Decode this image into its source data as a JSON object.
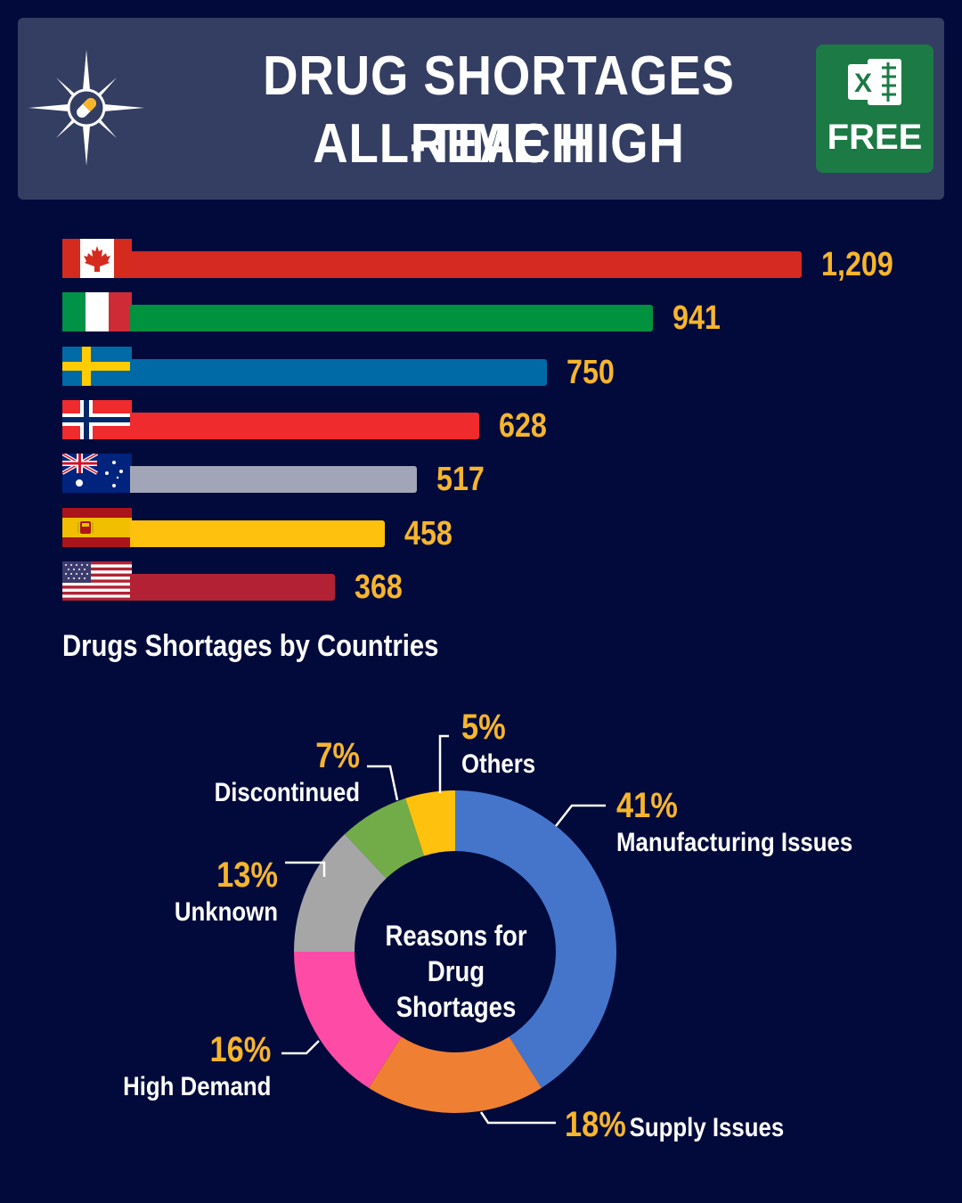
{
  "header": {
    "title_line1": "DRUG SHORTAGES REACH",
    "title_line2": "ALL-TIME HIGH",
    "badge_label": "FREE",
    "badge_logo_letter": "X"
  },
  "chart_data": [
    {
      "type": "bar",
      "orientation": "horizontal",
      "title": "Drugs Shortages by Countries",
      "categories": [
        "Canada",
        "Italy",
        "Sweden",
        "Norway",
        "Australia",
        "Spain",
        "United States"
      ],
      "values": [
        1209,
        941,
        750,
        628,
        517,
        458,
        368
      ],
      "value_labels": [
        "1,209",
        "941",
        "750",
        "628",
        "517",
        "458",
        "368"
      ],
      "category_icons": [
        "canada-flag",
        "italy-flag",
        "sweden-flag",
        "norway-flag",
        "australia-flag",
        "spain-flag",
        "usa-flag"
      ],
      "colors": [
        "#d42a21",
        "#00923f",
        "#006aa7",
        "#ef2b2d",
        "#a2a5b7",
        "#fec10e",
        "#b22234"
      ],
      "xlim": [
        0,
        1209
      ],
      "grid": false
    },
    {
      "type": "pie",
      "donut": true,
      "center_label": [
        "Reasons for",
        "Drug Shortages"
      ],
      "slices": [
        {
          "label": "Manufacturing Issues",
          "value": 41,
          "pct_label": "41%",
          "color": "#4575cb"
        },
        {
          "label": "Supply Issues",
          "value": 18,
          "pct_label": "18%",
          "color": "#ef7f32"
        },
        {
          "label": "High Demand",
          "value": 16,
          "pct_label": "16%",
          "color": "#fe4ba6"
        },
        {
          "label": "Unknown",
          "value": 13,
          "pct_label": "13%",
          "color": "#a6a6a6"
        },
        {
          "label": "Discontinued",
          "value": 7,
          "pct_label": "7%",
          "color": "#72ac48"
        },
        {
          "label": "Others",
          "value": 5,
          "pct_label": "5%",
          "color": "#fec10e"
        }
      ]
    }
  ]
}
